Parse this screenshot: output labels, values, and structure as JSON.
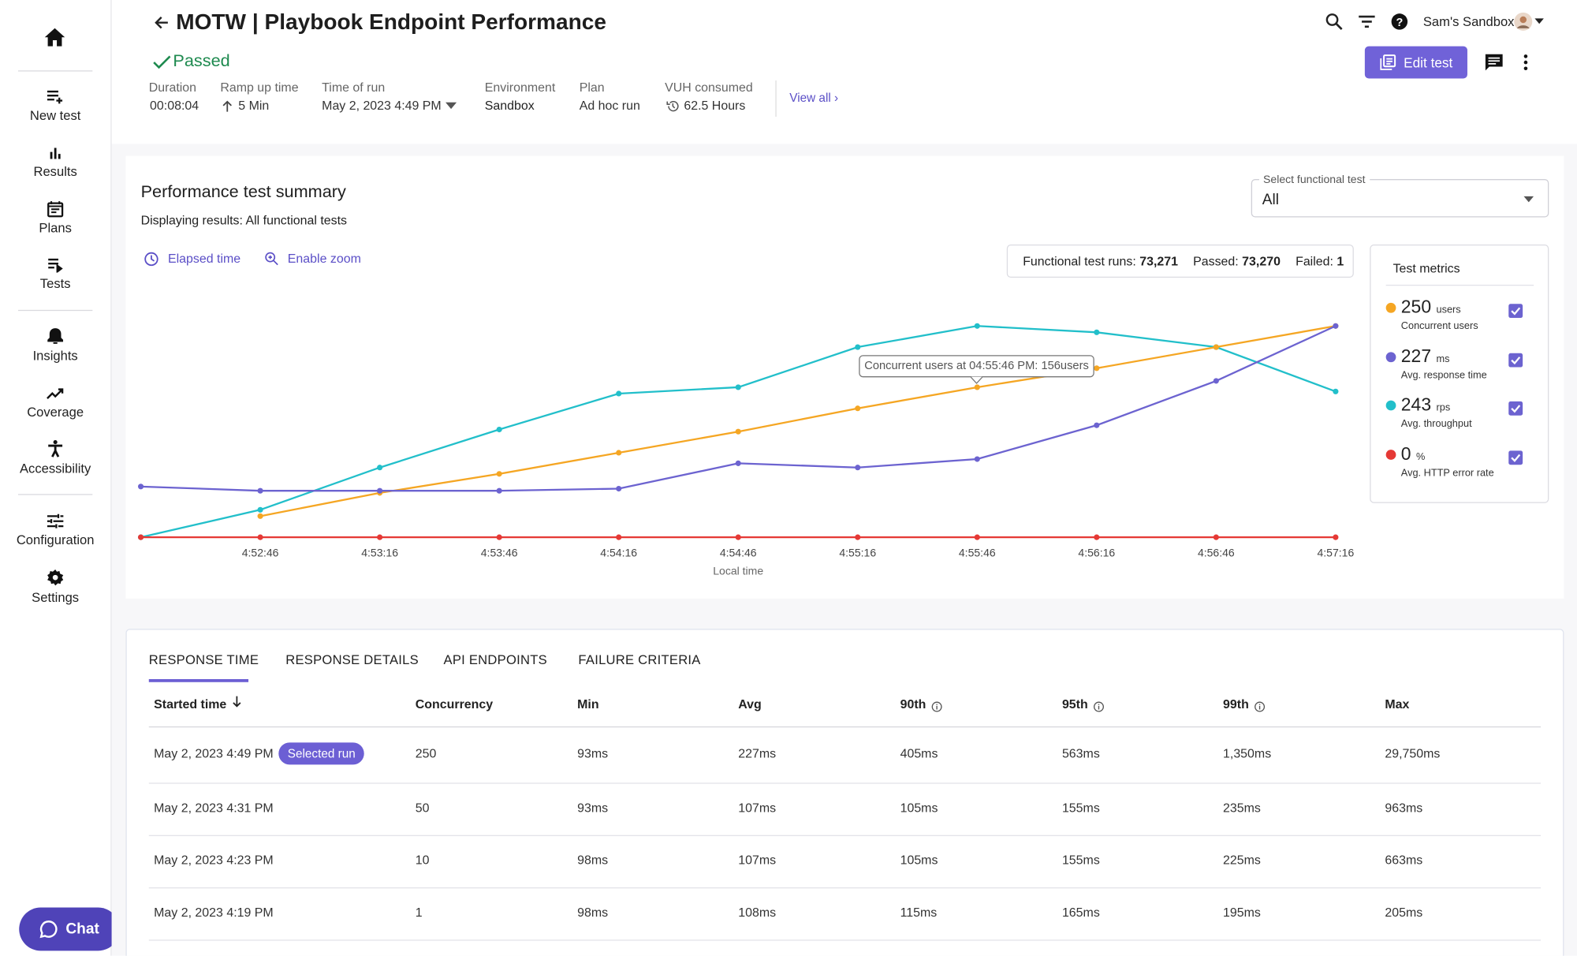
{
  "nav": {
    "items": [
      "New test",
      "Results",
      "Plans",
      "Tests",
      "Insights",
      "Coverage",
      "Accessibility",
      "Configuration",
      "Settings"
    ],
    "chat": "Chat"
  },
  "header": {
    "title": "MOTW | Playbook Endpoint Performance",
    "status": "Passed",
    "workspace": "Sam's Sandbox",
    "edit_button": "Edit test",
    "view_all": "View all",
    "meta": [
      {
        "label": "Duration",
        "value": "00:08:04"
      },
      {
        "label": "Ramp up time",
        "value": "5 Min"
      },
      {
        "label": "Time of run",
        "value": "May 2, 2023 4:49 PM"
      },
      {
        "label": "Environment",
        "value": "Sandbox"
      },
      {
        "label": "Plan",
        "value": "Ad hoc run"
      },
      {
        "label": "VUH consumed",
        "value": "62.5 Hours"
      }
    ]
  },
  "summary": {
    "title": "Performance test summary",
    "subtitle": "Displaying results: All functional tests",
    "select_label": "Select functional test",
    "select_value": "All",
    "elapsed": "Elapsed time",
    "zoom": "Enable zoom",
    "runs": [
      {
        "label": "Functional test runs:",
        "value": "73,271"
      },
      {
        "label": "Passed:",
        "value": "73,270"
      },
      {
        "label": "Failed:",
        "value": "1"
      }
    ],
    "tooltip": "Concurrent users at 04:55:46 PM: 156users"
  },
  "chart_data": {
    "type": "line",
    "x_label": "Local time",
    "legend_title": "Test metrics",
    "categories": [
      null,
      "4:52:46",
      "4:53:16",
      "4:53:46",
      "4:54:16",
      "4:54:46",
      "4:55:16",
      "4:55:46",
      "4:56:16",
      "4:56:46",
      "4:57:16"
    ],
    "ylim": [
      0,
      100
    ],
    "series": [
      {
        "name": "Concurrent users",
        "current": 250,
        "unit": "users",
        "color": "#f5a623",
        "values": [
          null,
          10,
          21,
          30,
          40,
          50,
          61,
          71,
          80,
          90,
          100
        ]
      },
      {
        "name": "Avg. response time",
        "current": 227,
        "unit": "ms",
        "color": "#6c63d0",
        "values": [
          24,
          22,
          22,
          22,
          23,
          35,
          33,
          37,
          53,
          74,
          100
        ]
      },
      {
        "name": "Avg. throughput",
        "current": 243,
        "unit": "rps",
        "color": "#22bfca",
        "values": [
          0,
          13,
          33,
          51,
          68,
          71,
          90,
          100,
          97,
          90,
          69
        ]
      },
      {
        "name": "Avg. HTTP error rate",
        "current": 0,
        "unit": "%",
        "color": "#e53935",
        "values": [
          0,
          0,
          0,
          0,
          0,
          0,
          0,
          0,
          0,
          0,
          0
        ]
      }
    ]
  },
  "table": {
    "tabs": [
      "RESPONSE TIME",
      "RESPONSE DETAILS",
      "API ENDPOINTS",
      "FAILURE CRITERIA"
    ],
    "columns": [
      "Started time",
      "Concurrency",
      "Min",
      "Avg",
      "90th",
      "95th",
      "99th",
      "Max"
    ],
    "badge": "Selected run",
    "rows": [
      [
        "May 2, 2023 4:49 PM",
        "250",
        "93ms",
        "227ms",
        "405ms",
        "563ms",
        "1,350ms",
        "29,750ms"
      ],
      [
        "May 2, 2023 4:31 PM",
        "50",
        "93ms",
        "107ms",
        "105ms",
        "155ms",
        "235ms",
        "963ms"
      ],
      [
        "May 2, 2023 4:23 PM",
        "10",
        "98ms",
        "107ms",
        "105ms",
        "155ms",
        "225ms",
        "663ms"
      ],
      [
        "May 2, 2023 4:19 PM",
        "1",
        "98ms",
        "108ms",
        "115ms",
        "165ms",
        "195ms",
        "205ms"
      ]
    ]
  }
}
